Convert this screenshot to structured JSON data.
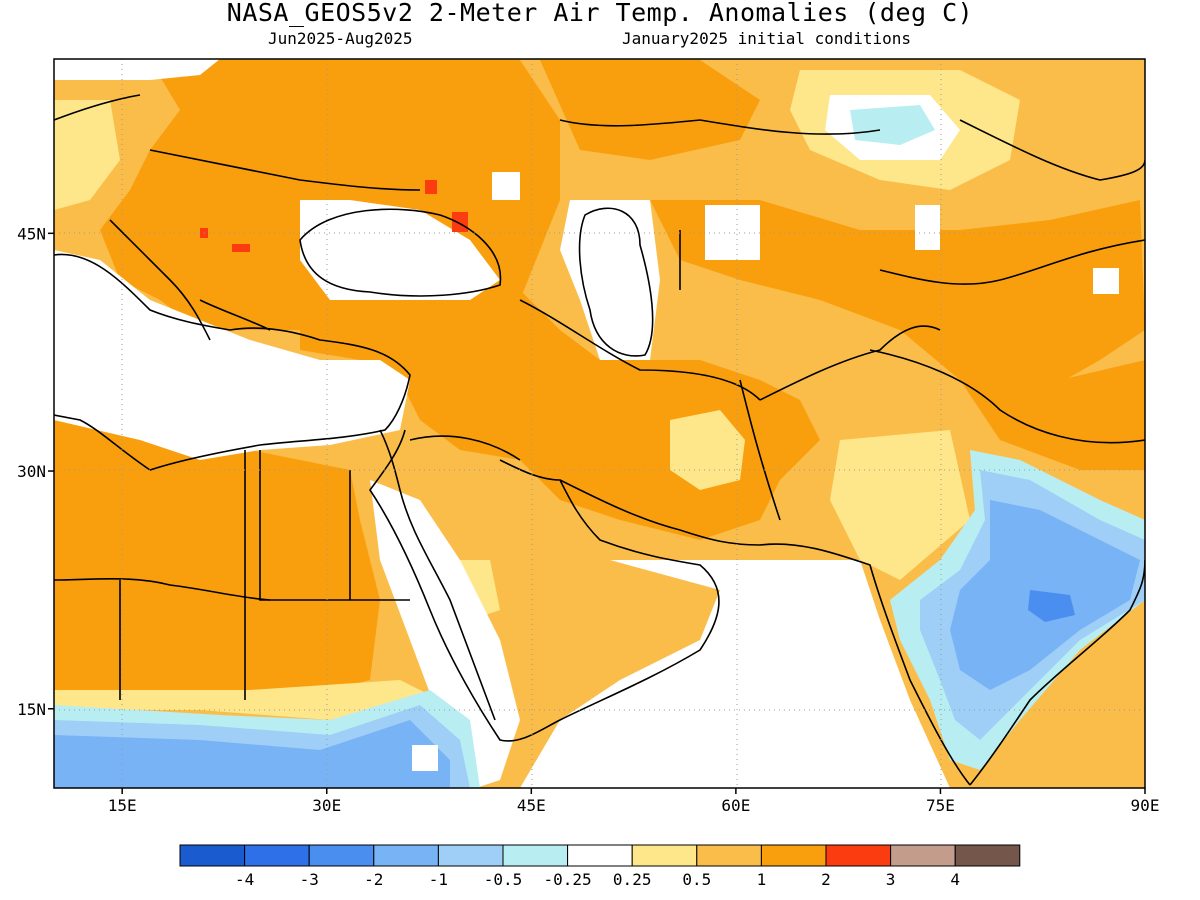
{
  "title": "NASA_GEOS5v2 2-Meter Air Temp. Anomalies (deg C)",
  "subtitle_left": "Jun2025-Aug2025",
  "subtitle_right": "January2025 initial conditions",
  "map": {
    "lon_range": [
      10,
      90
    ],
    "lat_range": [
      10,
      56
    ],
    "lat_ticks": [
      {
        "value": 45,
        "label": "45N"
      },
      {
        "value": 30,
        "label": "30N"
      },
      {
        "value": 15,
        "label": "15N"
      }
    ],
    "lon_ticks": [
      {
        "value": 15,
        "label": "15E"
      },
      {
        "value": 30,
        "label": "30E"
      },
      {
        "value": 45,
        "label": "45E"
      },
      {
        "value": 60,
        "label": "60E"
      },
      {
        "value": 75,
        "label": "75E"
      },
      {
        "value": 90,
        "label": "90E"
      }
    ]
  },
  "colorbar": {
    "colors": [
      "#1a5ccf",
      "#2e70e8",
      "#4a8ef0",
      "#78b3f5",
      "#9fcff7",
      "#b8eef2",
      "#ffffff",
      "#fde78a",
      "#fbbd4a",
      "#f99f0e",
      "#fb3b10",
      "#c49c8c",
      "#74574a"
    ],
    "labels": [
      "-4",
      "-3",
      "-2",
      "-1",
      "-0.5",
      "-0.25",
      "0.25",
      "0.5",
      "1",
      "2",
      "3",
      "4"
    ]
  }
}
